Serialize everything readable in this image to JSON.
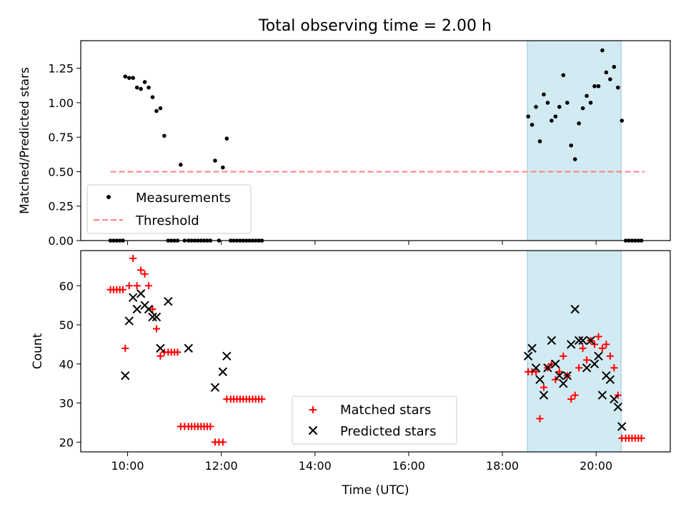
{
  "chart_data": [
    {
      "type": "scatter",
      "title": "Total observing time = 2.00 h",
      "xlabel": "",
      "ylabel": "Matched/Predicted stars",
      "ylim": [
        0,
        1.45
      ],
      "xlim": [
        "09:00",
        "21:35"
      ],
      "y_ticks": [
        "0.00",
        "0.25",
        "0.50",
        "0.75",
        "1.00",
        "1.25"
      ],
      "highlight_band": {
        "from": "18:32",
        "to": "20:32",
        "color": "#add8e6"
      },
      "series": [
        {
          "name": "Measurements",
          "marker": "dot",
          "color": "#000000",
          "points": [
            [
              "09:38",
              0
            ],
            [
              "09:42",
              0
            ],
            [
              "09:46",
              0
            ],
            [
              "09:50",
              0
            ],
            [
              "09:54",
              0
            ],
            [
              "09:57",
              1.19
            ],
            [
              "10:02",
              1.18
            ],
            [
              "10:07",
              1.18
            ],
            [
              "10:12",
              1.11
            ],
            [
              "10:17",
              1.1
            ],
            [
              "10:22",
              1.15
            ],
            [
              "10:27",
              1.11
            ],
            [
              "10:32",
              1.04
            ],
            [
              "10:37",
              0.94
            ],
            [
              "10:42",
              0.96
            ],
            [
              "10:47",
              0.76
            ],
            [
              "10:52",
              0
            ],
            [
              "10:56",
              0
            ],
            [
              "11:00",
              0
            ],
            [
              "11:04",
              0
            ],
            [
              "11:08",
              0.55
            ],
            [
              "11:13",
              0
            ],
            [
              "11:18",
              0
            ],
            [
              "11:22",
              0
            ],
            [
              "11:26",
              0
            ],
            [
              "11:30",
              0
            ],
            [
              "11:34",
              0
            ],
            [
              "11:38",
              0
            ],
            [
              "11:42",
              0
            ],
            [
              "11:46",
              0
            ],
            [
              "11:52",
              0.58
            ],
            [
              "11:57",
              0
            ],
            [
              "12:02",
              0.53
            ],
            [
              "12:07",
              0.74
            ],
            [
              "12:12",
              0
            ],
            [
              "12:16",
              0
            ],
            [
              "12:20",
              0
            ],
            [
              "12:24",
              0
            ],
            [
              "12:28",
              0
            ],
            [
              "12:32",
              0
            ],
            [
              "12:36",
              0
            ],
            [
              "12:40",
              0
            ],
            [
              "12:44",
              0
            ],
            [
              "12:48",
              0
            ],
            [
              "12:52",
              0
            ],
            [
              "18:33",
              0.9
            ],
            [
              "18:38",
              0.84
            ],
            [
              "18:43",
              0.97
            ],
            [
              "18:48",
              0.72
            ],
            [
              "18:53",
              1.06
            ],
            [
              "18:58",
              1.0
            ],
            [
              "19:03",
              0.87
            ],
            [
              "19:08",
              0.9
            ],
            [
              "19:13",
              0.97
            ],
            [
              "19:18",
              1.2
            ],
            [
              "19:23",
              1.0
            ],
            [
              "19:28",
              0.69
            ],
            [
              "19:33",
              0.59
            ],
            [
              "19:38",
              0.85
            ],
            [
              "19:43",
              0.96
            ],
            [
              "19:48",
              1.05
            ],
            [
              "19:53",
              1.0
            ],
            [
              "19:58",
              1.12
            ],
            [
              "20:03",
              1.12
            ],
            [
              "20:08",
              1.38
            ],
            [
              "20:13",
              1.22
            ],
            [
              "20:18",
              1.17
            ],
            [
              "20:23",
              1.26
            ],
            [
              "20:28",
              1.11
            ],
            [
              "20:33",
              0.87
            ],
            [
              "20:38",
              0
            ],
            [
              "20:42",
              0
            ],
            [
              "20:46",
              0
            ],
            [
              "20:50",
              0
            ],
            [
              "20:54",
              0
            ],
            [
              "20:58",
              0
            ]
          ]
        },
        {
          "name": "Threshold",
          "marker": "dashed-line",
          "color": "#ff7f7f",
          "points": [
            [
              "09:38",
              0.5
            ],
            [
              "21:02",
              0.5
            ]
          ]
        }
      ],
      "legend": {
        "placement": "lower-left",
        "entries": [
          "Measurements",
          "Threshold"
        ]
      }
    },
    {
      "type": "scatter",
      "xlabel": "Time (UTC)",
      "ylabel": "Count",
      "ylim": [
        17.5,
        69
      ],
      "xlim": [
        "09:00",
        "21:35"
      ],
      "x_ticks": [
        "10:00",
        "12:00",
        "14:00",
        "16:00",
        "18:00",
        "20:00"
      ],
      "y_ticks": [
        "20",
        "30",
        "40",
        "50",
        "60"
      ],
      "highlight_band": {
        "from": "18:32",
        "to": "20:32",
        "color": "#add8e6"
      },
      "series": [
        {
          "name": "Matched stars",
          "marker": "plus",
          "color": "#ff0000",
          "points": [
            [
              "09:38",
              59
            ],
            [
              "09:42",
              59
            ],
            [
              "09:46",
              59
            ],
            [
              "09:50",
              59
            ],
            [
              "09:54",
              59
            ],
            [
              "09:57",
              44
            ],
            [
              "10:02",
              60
            ],
            [
              "10:07",
              67
            ],
            [
              "10:12",
              60
            ],
            [
              "10:17",
              64
            ],
            [
              "10:22",
              63
            ],
            [
              "10:27",
              60
            ],
            [
              "10:32",
              54
            ],
            [
              "10:37",
              49
            ],
            [
              "10:42",
              42
            ],
            [
              "10:47",
              43
            ],
            [
              "10:52",
              43
            ],
            [
              "10:56",
              43
            ],
            [
              "11:00",
              43
            ],
            [
              "11:04",
              43
            ],
            [
              "11:08",
              24
            ],
            [
              "11:13",
              24
            ],
            [
              "11:18",
              24
            ],
            [
              "11:22",
              24
            ],
            [
              "11:26",
              24
            ],
            [
              "11:30",
              24
            ],
            [
              "11:34",
              24
            ],
            [
              "11:38",
              24
            ],
            [
              "11:42",
              24
            ],
            [
              "11:46",
              24
            ],
            [
              "11:52",
              20
            ],
            [
              "11:57",
              20
            ],
            [
              "12:02",
              20
            ],
            [
              "12:07",
              31
            ],
            [
              "12:12",
              31
            ],
            [
              "12:16",
              31
            ],
            [
              "12:20",
              31
            ],
            [
              "12:24",
              31
            ],
            [
              "12:28",
              31
            ],
            [
              "12:32",
              31
            ],
            [
              "12:36",
              31
            ],
            [
              "12:40",
              31
            ],
            [
              "12:44",
              31
            ],
            [
              "12:48",
              31
            ],
            [
              "12:52",
              31
            ],
            [
              "18:33",
              38
            ],
            [
              "18:38",
              38
            ],
            [
              "18:43",
              38
            ],
            [
              "18:48",
              26
            ],
            [
              "18:53",
              34
            ],
            [
              "18:58",
              39
            ],
            [
              "19:03",
              40
            ],
            [
              "19:08",
              36
            ],
            [
              "19:13",
              38
            ],
            [
              "19:18",
              42
            ],
            [
              "19:23",
              37
            ],
            [
              "19:28",
              31
            ],
            [
              "19:33",
              32
            ],
            [
              "19:38",
              39
            ],
            [
              "19:43",
              44
            ],
            [
              "19:48",
              41
            ],
            [
              "19:53",
              46
            ],
            [
              "19:58",
              45
            ],
            [
              "20:03",
              47
            ],
            [
              "20:08",
              44
            ],
            [
              "20:13",
              45
            ],
            [
              "20:18",
              42
            ],
            [
              "20:23",
              39
            ],
            [
              "20:28",
              32
            ],
            [
              "20:33",
              21
            ],
            [
              "20:38",
              21
            ],
            [
              "20:42",
              21
            ],
            [
              "20:46",
              21
            ],
            [
              "20:50",
              21
            ],
            [
              "20:54",
              21
            ],
            [
              "20:58",
              21
            ]
          ]
        },
        {
          "name": "Predicted stars",
          "marker": "x",
          "color": "#000000",
          "points": [
            [
              "09:57",
              37
            ],
            [
              "10:02",
              51
            ],
            [
              "10:07",
              57
            ],
            [
              "10:12",
              54
            ],
            [
              "10:17",
              58
            ],
            [
              "10:22",
              55
            ],
            [
              "10:27",
              54
            ],
            [
              "10:32",
              52
            ],
            [
              "10:37",
              52
            ],
            [
              "10:42",
              44
            ],
            [
              "10:52",
              56
            ],
            [
              "11:18",
              44
            ],
            [
              "11:52",
              34
            ],
            [
              "12:02",
              38
            ],
            [
              "12:07",
              42
            ],
            [
              "18:33",
              42
            ],
            [
              "18:38",
              44
            ],
            [
              "18:43",
              39
            ],
            [
              "18:48",
              36
            ],
            [
              "18:53",
              32
            ],
            [
              "18:58",
              39
            ],
            [
              "19:03",
              46
            ],
            [
              "19:08",
              40
            ],
            [
              "19:13",
              37
            ],
            [
              "19:18",
              35
            ],
            [
              "19:23",
              37
            ],
            [
              "19:28",
              45
            ],
            [
              "19:33",
              54
            ],
            [
              "19:38",
              46
            ],
            [
              "19:43",
              46
            ],
            [
              "19:48",
              39
            ],
            [
              "19:53",
              46
            ],
            [
              "19:58",
              40
            ],
            [
              "20:03",
              42
            ],
            [
              "20:08",
              32
            ],
            [
              "20:13",
              37
            ],
            [
              "20:18",
              36
            ],
            [
              "20:23",
              31
            ],
            [
              "20:28",
              29
            ],
            [
              "20:33",
              24
            ]
          ]
        }
      ],
      "legend": {
        "placement": "lower-center",
        "entries": [
          "Matched stars",
          "Predicted stars"
        ]
      }
    }
  ]
}
